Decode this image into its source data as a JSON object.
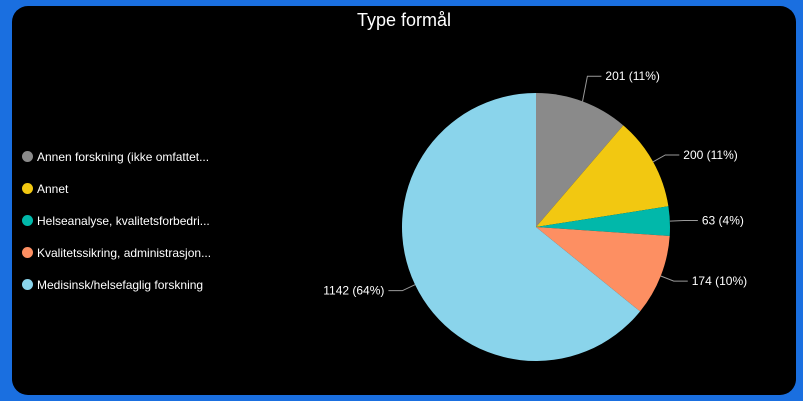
{
  "chart_data": {
    "type": "pie",
    "title": "Type formål",
    "legend_position": "left",
    "categories": [
      "Annen forskning (ikke omfattet...",
      "Annet",
      "Helseanalyse, kvalitetsforbedri...",
      "Kvalitetssikring, administrasjon...",
      "Medisinsk/helsefaglig forskning"
    ],
    "values": [
      201,
      200,
      63,
      174,
      1142
    ],
    "data_labels": [
      "201 (11%)",
      "200 (11%)",
      "63 (4%)",
      "174 (10%)",
      "1142 (64%)"
    ],
    "colors": [
      "#8a8a8a",
      "#f2c811",
      "#01b8aa",
      "#fd8f62",
      "#8ad4eb"
    ]
  }
}
